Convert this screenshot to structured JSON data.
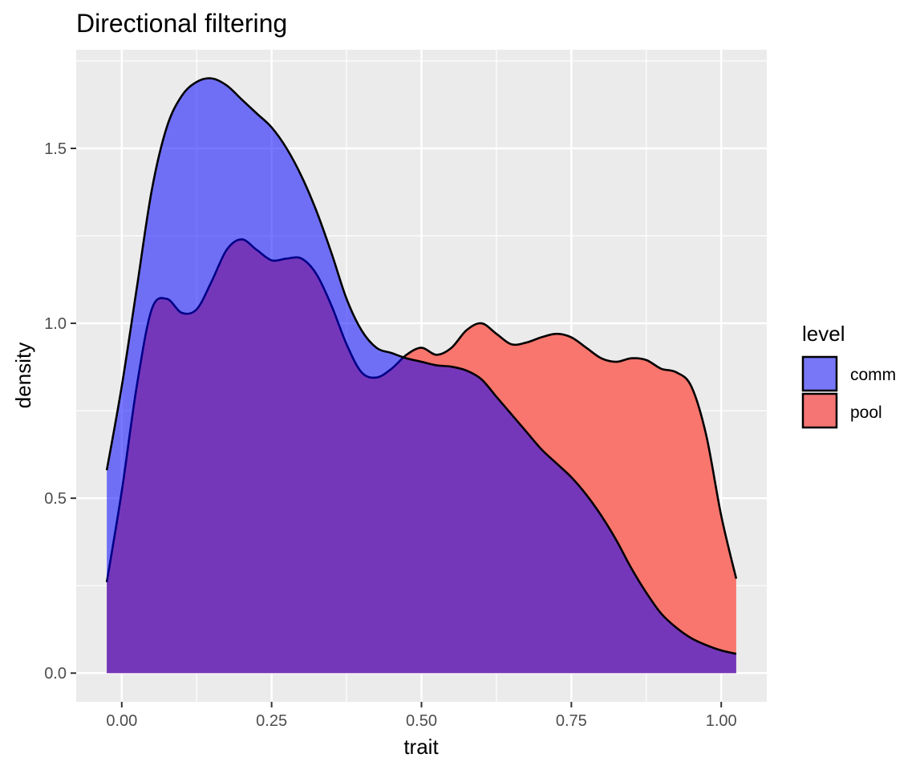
{
  "chart_data": {
    "type": "area",
    "title": "Directional filtering",
    "xlabel": "trait",
    "ylabel": "density",
    "xlim": [
      -0.076,
      1.076
    ],
    "ylim": [
      -0.082,
      1.782
    ],
    "x_ticks": [
      0.0,
      0.25,
      0.5,
      0.75,
      1.0
    ],
    "x_tick_labels": [
      "0.00",
      "0.25",
      "0.50",
      "0.75",
      "1.00"
    ],
    "y_ticks": [
      0.0,
      0.5,
      1.0,
      1.5
    ],
    "y_tick_labels": [
      "0.0",
      "0.5",
      "1.0",
      "1.5"
    ],
    "grid": true,
    "legend": {
      "title": "level",
      "position": "right",
      "entries": [
        {
          "label": "comm",
          "color": "#7777f7"
        },
        {
          "label": "pool",
          "color": "#f47573"
        }
      ]
    },
    "series": [
      {
        "name": "comm",
        "fill": "#0000ff",
        "fill_opacity": 0.53,
        "points": [
          [
            -0.025,
            0.58
          ],
          [
            0.0,
            0.82
          ],
          [
            0.025,
            1.1
          ],
          [
            0.05,
            1.38
          ],
          [
            0.075,
            1.56
          ],
          [
            0.1,
            1.65
          ],
          [
            0.125,
            1.69
          ],
          [
            0.15,
            1.7
          ],
          [
            0.175,
            1.68
          ],
          [
            0.2,
            1.64
          ],
          [
            0.225,
            1.6
          ],
          [
            0.25,
            1.56
          ],
          [
            0.275,
            1.5
          ],
          [
            0.3,
            1.42
          ],
          [
            0.325,
            1.32
          ],
          [
            0.35,
            1.2
          ],
          [
            0.375,
            1.07
          ],
          [
            0.4,
            0.98
          ],
          [
            0.425,
            0.93
          ],
          [
            0.45,
            0.915
          ],
          [
            0.475,
            0.9
          ],
          [
            0.5,
            0.89
          ],
          [
            0.525,
            0.88
          ],
          [
            0.55,
            0.876
          ],
          [
            0.575,
            0.865
          ],
          [
            0.6,
            0.84
          ],
          [
            0.625,
            0.79
          ],
          [
            0.65,
            0.74
          ],
          [
            0.675,
            0.69
          ],
          [
            0.7,
            0.64
          ],
          [
            0.725,
            0.6
          ],
          [
            0.75,
            0.56
          ],
          [
            0.775,
            0.51
          ],
          [
            0.8,
            0.45
          ],
          [
            0.825,
            0.38
          ],
          [
            0.85,
            0.3
          ],
          [
            0.875,
            0.23
          ],
          [
            0.9,
            0.17
          ],
          [
            0.925,
            0.13
          ],
          [
            0.95,
            0.1
          ],
          [
            0.975,
            0.08
          ],
          [
            1.0,
            0.065
          ],
          [
            1.025,
            0.055
          ]
        ]
      },
      {
        "name": "pool",
        "fill": "#f8766d",
        "fill_opacity": 1.0,
        "points": [
          [
            -0.025,
            0.26
          ],
          [
            0.0,
            0.52
          ],
          [
            0.025,
            0.82
          ],
          [
            0.05,
            1.04
          ],
          [
            0.075,
            1.07
          ],
          [
            0.1,
            1.03
          ],
          [
            0.125,
            1.04
          ],
          [
            0.15,
            1.12
          ],
          [
            0.175,
            1.21
          ],
          [
            0.2,
            1.24
          ],
          [
            0.225,
            1.21
          ],
          [
            0.25,
            1.18
          ],
          [
            0.275,
            1.185
          ],
          [
            0.3,
            1.185
          ],
          [
            0.325,
            1.14
          ],
          [
            0.35,
            1.05
          ],
          [
            0.375,
            0.94
          ],
          [
            0.4,
            0.86
          ],
          [
            0.425,
            0.845
          ],
          [
            0.45,
            0.87
          ],
          [
            0.475,
            0.91
          ],
          [
            0.5,
            0.93
          ],
          [
            0.525,
            0.91
          ],
          [
            0.55,
            0.93
          ],
          [
            0.575,
            0.98
          ],
          [
            0.6,
            1.0
          ],
          [
            0.625,
            0.97
          ],
          [
            0.65,
            0.94
          ],
          [
            0.675,
            0.945
          ],
          [
            0.7,
            0.96
          ],
          [
            0.725,
            0.97
          ],
          [
            0.75,
            0.96
          ],
          [
            0.775,
            0.93
          ],
          [
            0.8,
            0.9
          ],
          [
            0.825,
            0.89
          ],
          [
            0.85,
            0.9
          ],
          [
            0.875,
            0.895
          ],
          [
            0.9,
            0.87
          ],
          [
            0.925,
            0.86
          ],
          [
            0.95,
            0.82
          ],
          [
            0.975,
            0.68
          ],
          [
            1.0,
            0.45
          ],
          [
            1.025,
            0.27
          ]
        ]
      }
    ]
  },
  "colors": {
    "panel_background": "#ebebeb",
    "grid_major": "#ffffff",
    "axis_text": "#4d4d4d",
    "title_text": "#000000",
    "outline": "#000000"
  }
}
